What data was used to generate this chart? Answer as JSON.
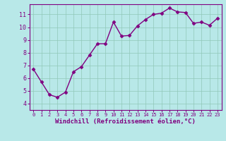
{
  "x": [
    0,
    1,
    2,
    3,
    4,
    5,
    6,
    7,
    8,
    9,
    10,
    11,
    12,
    13,
    14,
    15,
    16,
    17,
    18,
    19,
    20,
    21,
    22,
    23
  ],
  "y": [
    6.7,
    5.7,
    4.7,
    4.5,
    4.9,
    6.5,
    6.9,
    7.8,
    8.7,
    8.7,
    10.4,
    9.3,
    9.35,
    10.1,
    10.6,
    11.0,
    11.1,
    11.5,
    11.2,
    11.15,
    10.3,
    10.4,
    10.15,
    10.7
  ],
  "line_color": "#800080",
  "marker": "D",
  "marker_size": 2.5,
  "bg_color": "#b8e8e8",
  "grid_color": "#90c8b8",
  "xlabel": "Windchill (Refroidissement éolien,°C)",
  "xlim": [
    -0.5,
    23.5
  ],
  "ylim": [
    3.5,
    11.8
  ],
  "yticks": [
    4,
    5,
    6,
    7,
    8,
    9,
    10,
    11
  ],
  "xticks": [
    0,
    1,
    2,
    3,
    4,
    5,
    6,
    7,
    8,
    9,
    10,
    11,
    12,
    13,
    14,
    15,
    16,
    17,
    18,
    19,
    20,
    21,
    22,
    23
  ],
  "xlabel_fontsize": 6.5,
  "tick_fontsize": 6.0,
  "line_width": 1.0,
  "axis_color": "#800080"
}
